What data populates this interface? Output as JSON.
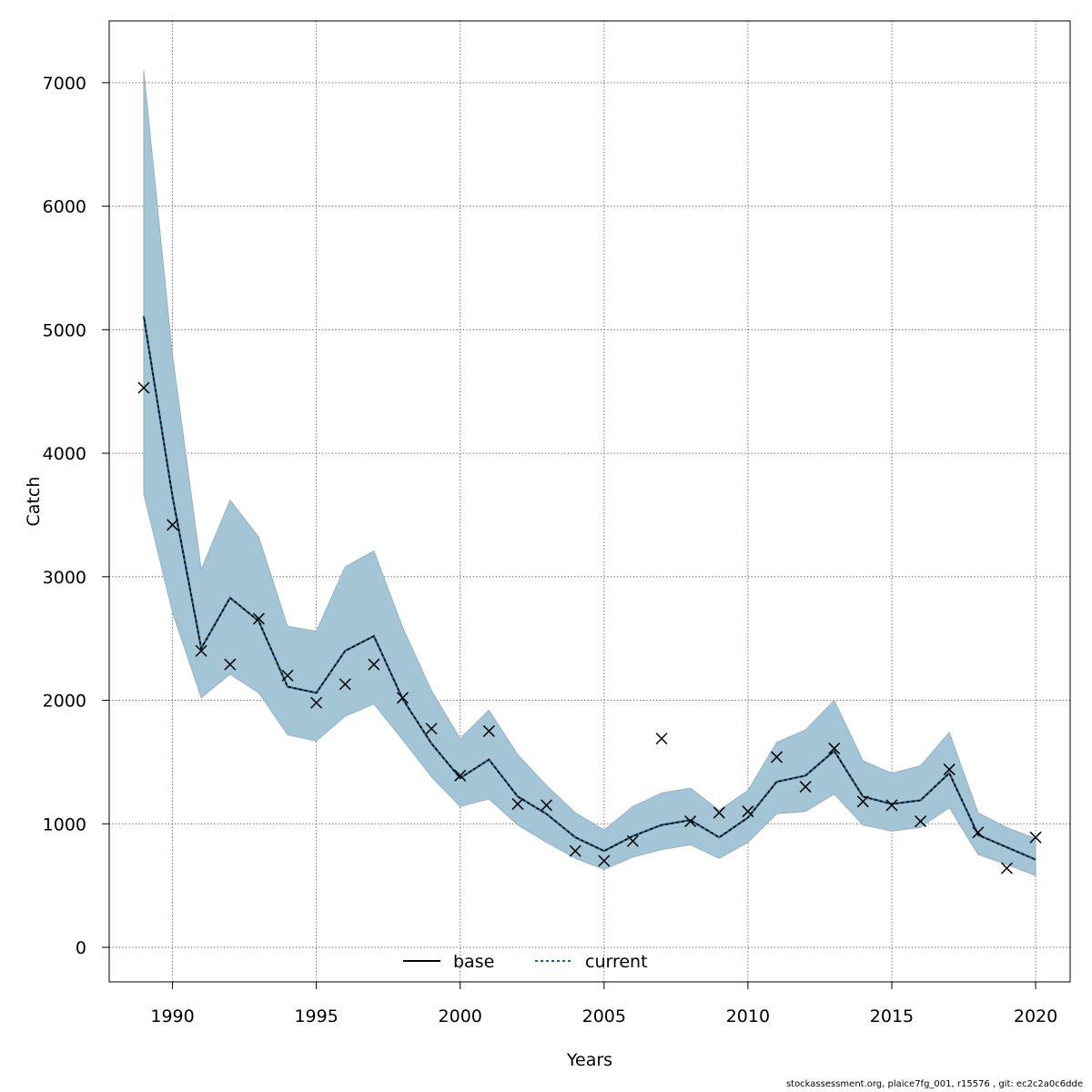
{
  "chart_data": {
    "type": "line",
    "title": "",
    "xlabel": "Years",
    "ylabel": "Catch",
    "xlim": [
      1987.8,
      2021.2
    ],
    "ylim": [
      -280,
      7500
    ],
    "grid": true,
    "x_ticks": [
      1990,
      1995,
      2000,
      2005,
      2010,
      2015,
      2020
    ],
    "y_ticks": [
      0,
      1000,
      2000,
      3000,
      4000,
      5000,
      6000,
      7000
    ],
    "years": [
      1989,
      1990,
      1991,
      1992,
      1993,
      1994,
      1995,
      1996,
      1997,
      1998,
      1999,
      2000,
      2001,
      2002,
      2003,
      2004,
      2005,
      2006,
      2007,
      2008,
      2009,
      2010,
      2011,
      2012,
      2013,
      2014,
      2015,
      2016,
      2017,
      2018,
      2019,
      2020
    ],
    "confidence_band": {
      "name": "current CI",
      "color": "#a4c5d6",
      "upper": [
        7100,
        4800,
        3060,
        3620,
        3320,
        2600,
        2560,
        3080,
        3210,
        2590,
        2080,
        1690,
        1920,
        1560,
        1310,
        1090,
        950,
        1140,
        1250,
        1290,
        1110,
        1270,
        1660,
        1760,
        2000,
        1510,
        1410,
        1470,
        1740,
        1090,
        970,
        880
      ],
      "lower": [
        3670,
        2710,
        2020,
        2210,
        2060,
        1720,
        1670,
        1870,
        1970,
        1680,
        1380,
        1140,
        1200,
        990,
        850,
        720,
        630,
        730,
        790,
        830,
        720,
        850,
        1080,
        1100,
        1240,
        990,
        940,
        970,
        1130,
        750,
        670,
        580
      ]
    },
    "series": [
      {
        "name": "base",
        "style": "solid",
        "color": "#000000",
        "values": [
          5110,
          3650,
          2420,
          2830,
          2640,
          2110,
          2060,
          2400,
          2520,
          2010,
          1650,
          1370,
          1520,
          1220,
          1080,
          890,
          780,
          900,
          990,
          1030,
          890,
          1050,
          1340,
          1390,
          1590,
          1220,
          1160,
          1190,
          1410,
          910,
          810,
          710
        ]
      },
      {
        "name": "current",
        "style": "dotted",
        "color": "#1f5f8f",
        "values": [
          5110,
          3650,
          2420,
          2830,
          2640,
          2110,
          2060,
          2400,
          2520,
          2010,
          1650,
          1370,
          1520,
          1220,
          1080,
          890,
          780,
          900,
          990,
          1030,
          890,
          1050,
          1340,
          1390,
          1590,
          1220,
          1160,
          1190,
          1410,
          910,
          810,
          710
        ]
      }
    ],
    "observations": {
      "marker": "x",
      "values": [
        4530,
        3420,
        2400,
        2290,
        2660,
        2200,
        1980,
        2130,
        2290,
        2020,
        1770,
        1390,
        1750,
        1160,
        1150,
        780,
        700,
        860,
        1690,
        1020,
        1090,
        1100,
        1540,
        1300,
        1610,
        1180,
        1150,
        1020,
        1440,
        930,
        640,
        890
      ]
    },
    "legend": {
      "position": "bottom",
      "entries": [
        {
          "label": "base",
          "style": "solid"
        },
        {
          "label": "current",
          "style": "dotted"
        }
      ]
    }
  },
  "footer": {
    "text": "stockassessment.org, plaice7fg_001, r15576 , git: ec2c2a0c6dde"
  }
}
